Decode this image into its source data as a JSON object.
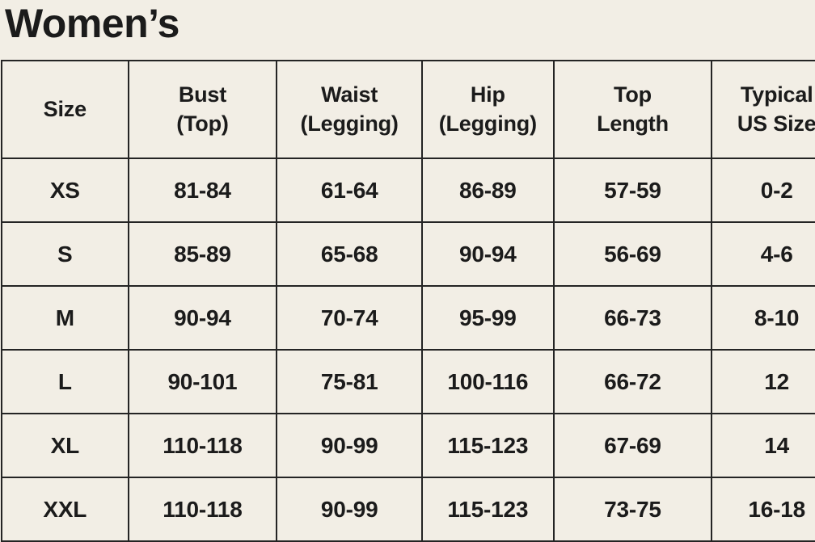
{
  "page": {
    "title": "Women’s"
  },
  "colors": {
    "background": "#F2EEE5",
    "text": "#1B1B1B",
    "border": "#242424"
  },
  "table": {
    "header": [
      {
        "lines": [
          "Size"
        ]
      },
      {
        "lines": [
          "Bust",
          "(Top)"
        ]
      },
      {
        "lines": [
          "Waist",
          "(Legging)"
        ]
      },
      {
        "lines": [
          "Hip",
          "(Legging)"
        ]
      },
      {
        "lines": [
          "Top",
          "Length"
        ]
      },
      {
        "lines": [
          "Typical",
          "US Size"
        ]
      }
    ],
    "rows": [
      [
        "XS",
        "81-84",
        "61-64",
        "86-89",
        "57-59",
        "0-2"
      ],
      [
        "S",
        "85-89",
        "65-68",
        "90-94",
        "56-69",
        "4-6"
      ],
      [
        "M",
        "90-94",
        "70-74",
        "95-99",
        "66-73",
        "8-10"
      ],
      [
        "L",
        "90-101",
        "75-81",
        "100-116",
        "66-72",
        "12"
      ],
      [
        "XL",
        "110-118",
        "90-99",
        "115-123",
        "67-69",
        "14"
      ],
      [
        "XXL",
        "110-118",
        "90-99",
        "115-123",
        "73-75",
        "16-18"
      ]
    ]
  }
}
